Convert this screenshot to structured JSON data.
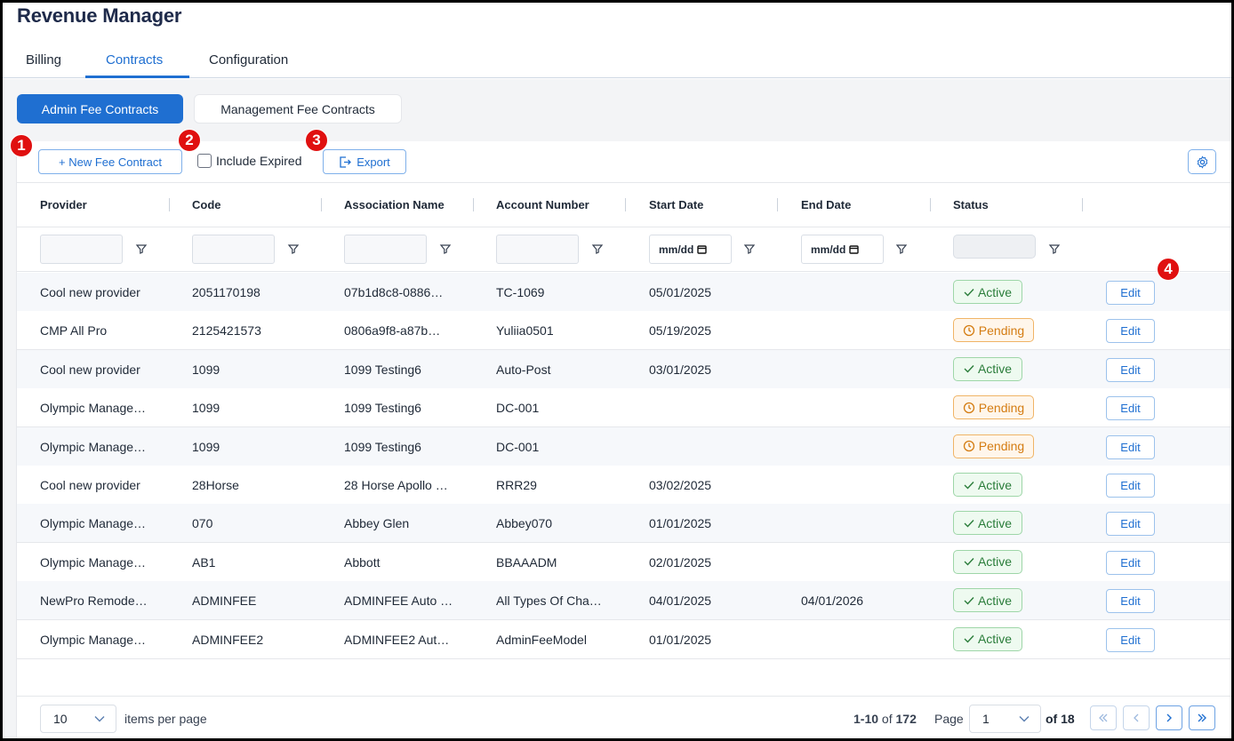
{
  "app": {
    "title": "Revenue Manager"
  },
  "tabs": [
    {
      "label": "Billing"
    },
    {
      "label": "Contracts"
    },
    {
      "label": "Configuration"
    }
  ],
  "subtabs": [
    {
      "label": "Admin Fee Contracts"
    },
    {
      "label": "Management Fee Contracts"
    }
  ],
  "toolbar": {
    "new_label": "+ New Fee Contract",
    "include_expired_label": "Include Expired",
    "include_expired_checked": false,
    "export_label": "Export"
  },
  "badges": [
    "1",
    "2",
    "3",
    "4"
  ],
  "table": {
    "columns": [
      "Provider",
      "Code",
      "Association Name",
      "Account Number",
      "Start Date",
      "End Date",
      "Status"
    ],
    "date_placeholder": "mm/dd",
    "rows": [
      {
        "provider": "Cool new provider",
        "code": "2051170198",
        "association": "07b1d8c8-0886…",
        "account": "TC-1069",
        "start": "05/01/2025",
        "end": "",
        "status": "Active",
        "action": "Edit"
      },
      {
        "provider": "CMP All Pro",
        "code": "2125421573",
        "association": "0806a9f8-a87b…",
        "account": "Yuliia0501",
        "start": "05/19/2025",
        "end": "",
        "status": "Pending",
        "action": "Edit"
      },
      {
        "provider": "Cool new provider",
        "code": "1099",
        "association": "1099 Testing6",
        "account": "Auto-Post",
        "start": "03/01/2025",
        "end": "",
        "status": "Active",
        "action": "Edit"
      },
      {
        "provider": "Olympic Manage…",
        "code": "1099",
        "association": "1099 Testing6",
        "account": "DC-001",
        "start": "",
        "end": "",
        "status": "Pending",
        "action": "Edit"
      },
      {
        "provider": "Olympic Manage…",
        "code": "1099",
        "association": "1099 Testing6",
        "account": "DC-001",
        "start": "",
        "end": "",
        "status": "Pending",
        "action": "Edit"
      },
      {
        "provider": "Cool new provider",
        "code": "28Horse",
        "association": "28 Horse Apollo …",
        "account": "RRR29",
        "start": "03/02/2025",
        "end": "",
        "status": "Active",
        "action": "Edit"
      },
      {
        "provider": "Olympic Manage…",
        "code": "070",
        "association": "Abbey Glen",
        "account": "Abbey070",
        "start": "01/01/2025",
        "end": "",
        "status": "Active",
        "action": "Edit"
      },
      {
        "provider": "Olympic Manage…",
        "code": "AB1",
        "association": "Abbott",
        "account": "BBAAADM",
        "start": "02/01/2025",
        "end": "",
        "status": "Active",
        "action": "Edit"
      },
      {
        "provider": "NewPro Remode…",
        "code": "ADMINFEE",
        "association": "ADMINFEE Auto …",
        "account": "All Types Of Cha…",
        "start": "04/01/2025",
        "end": "04/01/2026",
        "status": "Active",
        "action": "Edit"
      },
      {
        "provider": "Olympic Manage…",
        "code": "ADMINFEE2",
        "association": "ADMINFEE2 Aut…",
        "account": "AdminFeeModel",
        "start": "01/01/2025",
        "end": "",
        "status": "Active",
        "action": "Edit"
      }
    ]
  },
  "pagination": {
    "per_page": "10",
    "items_per_page_label": "items per page",
    "range": "1-10",
    "of_word": "of",
    "total": "172",
    "page_label": "Page",
    "page": "1",
    "of_pages": "of 18"
  },
  "colors": {
    "accent": "#1f6fd1",
    "active": "#2a7d3a",
    "pending": "#d47c12",
    "badge": "#e01010"
  }
}
